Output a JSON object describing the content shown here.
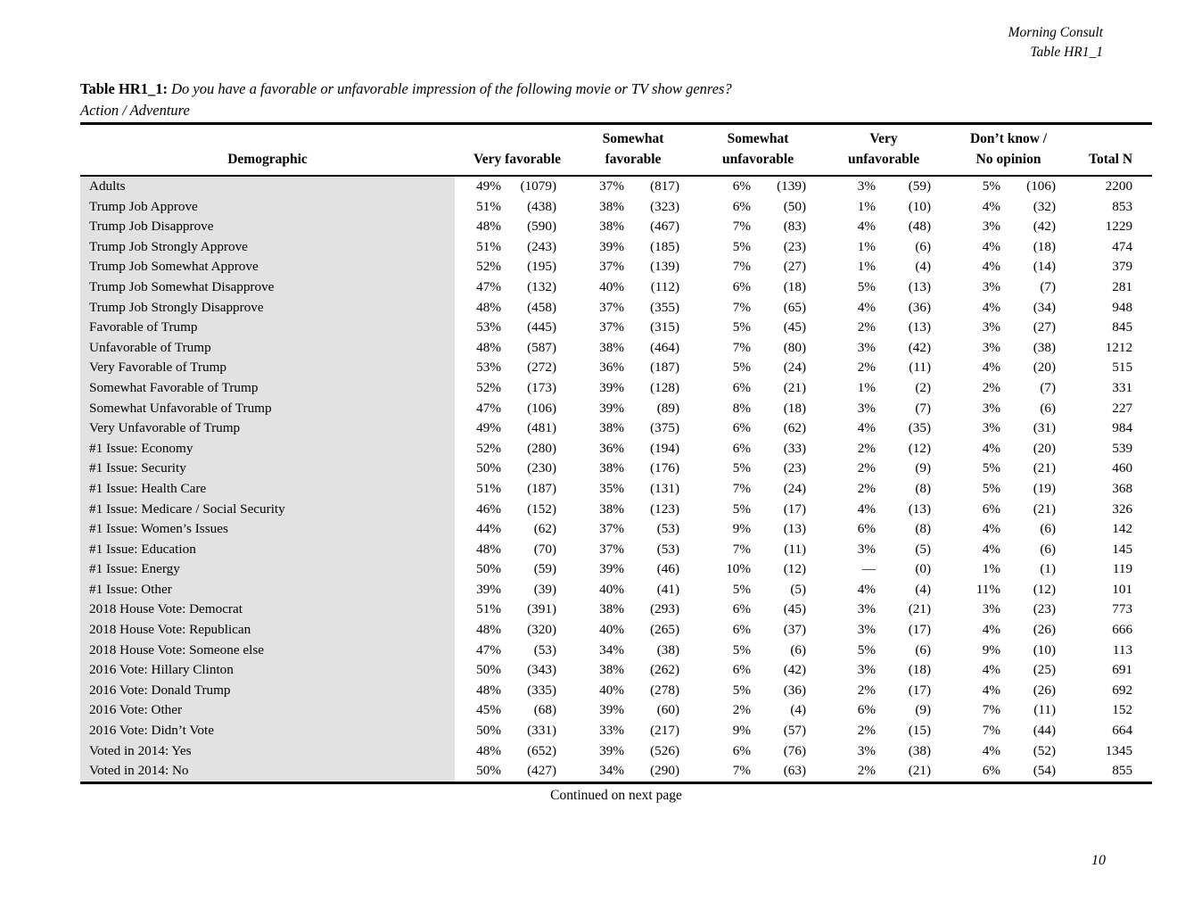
{
  "corner_header": {
    "brand": "Morning Consult",
    "table_ref": "Table HR1_1"
  },
  "title": {
    "prefix": "Table HR1_1:",
    "question": "Do you have a favorable or unfavorable impression of the following movie or TV show genres?",
    "subtitle": "Action / Adventure"
  },
  "table": {
    "columns": [
      {
        "label": "Demographic",
        "lines": [
          "Demographic"
        ]
      },
      {
        "label": "Very favorable",
        "lines": [
          "Very favorable"
        ]
      },
      {
        "label": "Somewhat favorable",
        "lines": [
          "Somewhat",
          "favorable"
        ]
      },
      {
        "label": "Somewhat unfavorable",
        "lines": [
          "Somewhat",
          "unfavorable"
        ]
      },
      {
        "label": "Very unfavorable",
        "lines": [
          "Very",
          "unfavorable"
        ]
      },
      {
        "label": "Don’t know / No opinion",
        "lines": [
          "Don’t know /",
          "No opinion"
        ]
      },
      {
        "label": "Total N",
        "lines": [
          "Total N"
        ]
      }
    ],
    "rows": [
      {
        "label": "Adults",
        "values": [
          "49%",
          "(1079)",
          "37%",
          "(817)",
          "6%",
          "(139)",
          "3%",
          "(59)",
          "5%",
          "(106)",
          "2200"
        ]
      },
      {
        "label": "Trump Job Approve",
        "values": [
          "51%",
          "(438)",
          "38%",
          "(323)",
          "6%",
          "(50)",
          "1%",
          "(10)",
          "4%",
          "(32)",
          "853"
        ]
      },
      {
        "label": "Trump Job Disapprove",
        "values": [
          "48%",
          "(590)",
          "38%",
          "(467)",
          "7%",
          "(83)",
          "4%",
          "(48)",
          "3%",
          "(42)",
          "1229"
        ]
      },
      {
        "label": "Trump Job Strongly Approve",
        "values": [
          "51%",
          "(243)",
          "39%",
          "(185)",
          "5%",
          "(23)",
          "1%",
          "(6)",
          "4%",
          "(18)",
          "474"
        ]
      },
      {
        "label": "Trump Job Somewhat Approve",
        "values": [
          "52%",
          "(195)",
          "37%",
          "(139)",
          "7%",
          "(27)",
          "1%",
          "(4)",
          "4%",
          "(14)",
          "379"
        ]
      },
      {
        "label": "Trump Job Somewhat Disapprove",
        "values": [
          "47%",
          "(132)",
          "40%",
          "(112)",
          "6%",
          "(18)",
          "5%",
          "(13)",
          "3%",
          "(7)",
          "281"
        ]
      },
      {
        "label": "Trump Job Strongly Disapprove",
        "values": [
          "48%",
          "(458)",
          "37%",
          "(355)",
          "7%",
          "(65)",
          "4%",
          "(36)",
          "4%",
          "(34)",
          "948"
        ]
      },
      {
        "label": "Favorable of Trump",
        "values": [
          "53%",
          "(445)",
          "37%",
          "(315)",
          "5%",
          "(45)",
          "2%",
          "(13)",
          "3%",
          "(27)",
          "845"
        ]
      },
      {
        "label": "Unfavorable of Trump",
        "values": [
          "48%",
          "(587)",
          "38%",
          "(464)",
          "7%",
          "(80)",
          "3%",
          "(42)",
          "3%",
          "(38)",
          "1212"
        ]
      },
      {
        "label": "Very Favorable of Trump",
        "values": [
          "53%",
          "(272)",
          "36%",
          "(187)",
          "5%",
          "(24)",
          "2%",
          "(11)",
          "4%",
          "(20)",
          "515"
        ]
      },
      {
        "label": "Somewhat Favorable of Trump",
        "values": [
          "52%",
          "(173)",
          "39%",
          "(128)",
          "6%",
          "(21)",
          "1%",
          "(2)",
          "2%",
          "(7)",
          "331"
        ]
      },
      {
        "label": "Somewhat Unfavorable of Trump",
        "values": [
          "47%",
          "(106)",
          "39%",
          "(89)",
          "8%",
          "(18)",
          "3%",
          "(7)",
          "3%",
          "(6)",
          "227"
        ]
      },
      {
        "label": "Very Unfavorable of Trump",
        "values": [
          "49%",
          "(481)",
          "38%",
          "(375)",
          "6%",
          "(62)",
          "4%",
          "(35)",
          "3%",
          "(31)",
          "984"
        ]
      },
      {
        "label": "#1 Issue: Economy",
        "values": [
          "52%",
          "(280)",
          "36%",
          "(194)",
          "6%",
          "(33)",
          "2%",
          "(12)",
          "4%",
          "(20)",
          "539"
        ]
      },
      {
        "label": "#1 Issue: Security",
        "values": [
          "50%",
          "(230)",
          "38%",
          "(176)",
          "5%",
          "(23)",
          "2%",
          "(9)",
          "5%",
          "(21)",
          "460"
        ]
      },
      {
        "label": "#1 Issue: Health Care",
        "values": [
          "51%",
          "(187)",
          "35%",
          "(131)",
          "7%",
          "(24)",
          "2%",
          "(8)",
          "5%",
          "(19)",
          "368"
        ]
      },
      {
        "label": "#1 Issue: Medicare / Social Security",
        "values": [
          "46%",
          "(152)",
          "38%",
          "(123)",
          "5%",
          "(17)",
          "4%",
          "(13)",
          "6%",
          "(21)",
          "326"
        ]
      },
      {
        "label": "#1 Issue: Women’s Issues",
        "values": [
          "44%",
          "(62)",
          "37%",
          "(53)",
          "9%",
          "(13)",
          "6%",
          "(8)",
          "4%",
          "(6)",
          "142"
        ]
      },
      {
        "label": "#1 Issue: Education",
        "values": [
          "48%",
          "(70)",
          "37%",
          "(53)",
          "7%",
          "(11)",
          "3%",
          "(5)",
          "4%",
          "(6)",
          "145"
        ]
      },
      {
        "label": "#1 Issue: Energy",
        "values": [
          "50%",
          "(59)",
          "39%",
          "(46)",
          "10%",
          "(12)",
          "—",
          "(0)",
          "1%",
          "(1)",
          "119"
        ]
      },
      {
        "label": "#1 Issue: Other",
        "values": [
          "39%",
          "(39)",
          "40%",
          "(41)",
          "5%",
          "(5)",
          "4%",
          "(4)",
          "11%",
          "(12)",
          "101"
        ]
      },
      {
        "label": "2018 House Vote: Democrat",
        "values": [
          "51%",
          "(391)",
          "38%",
          "(293)",
          "6%",
          "(45)",
          "3%",
          "(21)",
          "3%",
          "(23)",
          "773"
        ]
      },
      {
        "label": "2018 House Vote: Republican",
        "values": [
          "48%",
          "(320)",
          "40%",
          "(265)",
          "6%",
          "(37)",
          "3%",
          "(17)",
          "4%",
          "(26)",
          "666"
        ]
      },
      {
        "label": "2018 House Vote: Someone else",
        "values": [
          "47%",
          "(53)",
          "34%",
          "(38)",
          "5%",
          "(6)",
          "5%",
          "(6)",
          "9%",
          "(10)",
          "113"
        ]
      },
      {
        "label": "2016 Vote: Hillary Clinton",
        "values": [
          "50%",
          "(343)",
          "38%",
          "(262)",
          "6%",
          "(42)",
          "3%",
          "(18)",
          "4%",
          "(25)",
          "691"
        ]
      },
      {
        "label": "2016 Vote: Donald Trump",
        "values": [
          "48%",
          "(335)",
          "40%",
          "(278)",
          "5%",
          "(36)",
          "2%",
          "(17)",
          "4%",
          "(26)",
          "692"
        ]
      },
      {
        "label": "2016 Vote: Other",
        "values": [
          "45%",
          "(68)",
          "39%",
          "(60)",
          "2%",
          "(4)",
          "6%",
          "(9)",
          "7%",
          "(11)",
          "152"
        ]
      },
      {
        "label": "2016 Vote: Didn’t Vote",
        "values": [
          "50%",
          "(331)",
          "33%",
          "(217)",
          "9%",
          "(57)",
          "2%",
          "(15)",
          "7%",
          "(44)",
          "664"
        ]
      },
      {
        "label": "Voted in 2014: Yes",
        "values": [
          "48%",
          "(652)",
          "39%",
          "(526)",
          "6%",
          "(76)",
          "3%",
          "(38)",
          "4%",
          "(52)",
          "1345"
        ]
      },
      {
        "label": "Voted in 2014: No",
        "values": [
          "50%",
          "(427)",
          "34%",
          "(290)",
          "7%",
          "(63)",
          "2%",
          "(21)",
          "6%",
          "(54)",
          "855"
        ]
      }
    ]
  },
  "footer": {
    "continued": "Continued on next page",
    "page_number": "10"
  }
}
